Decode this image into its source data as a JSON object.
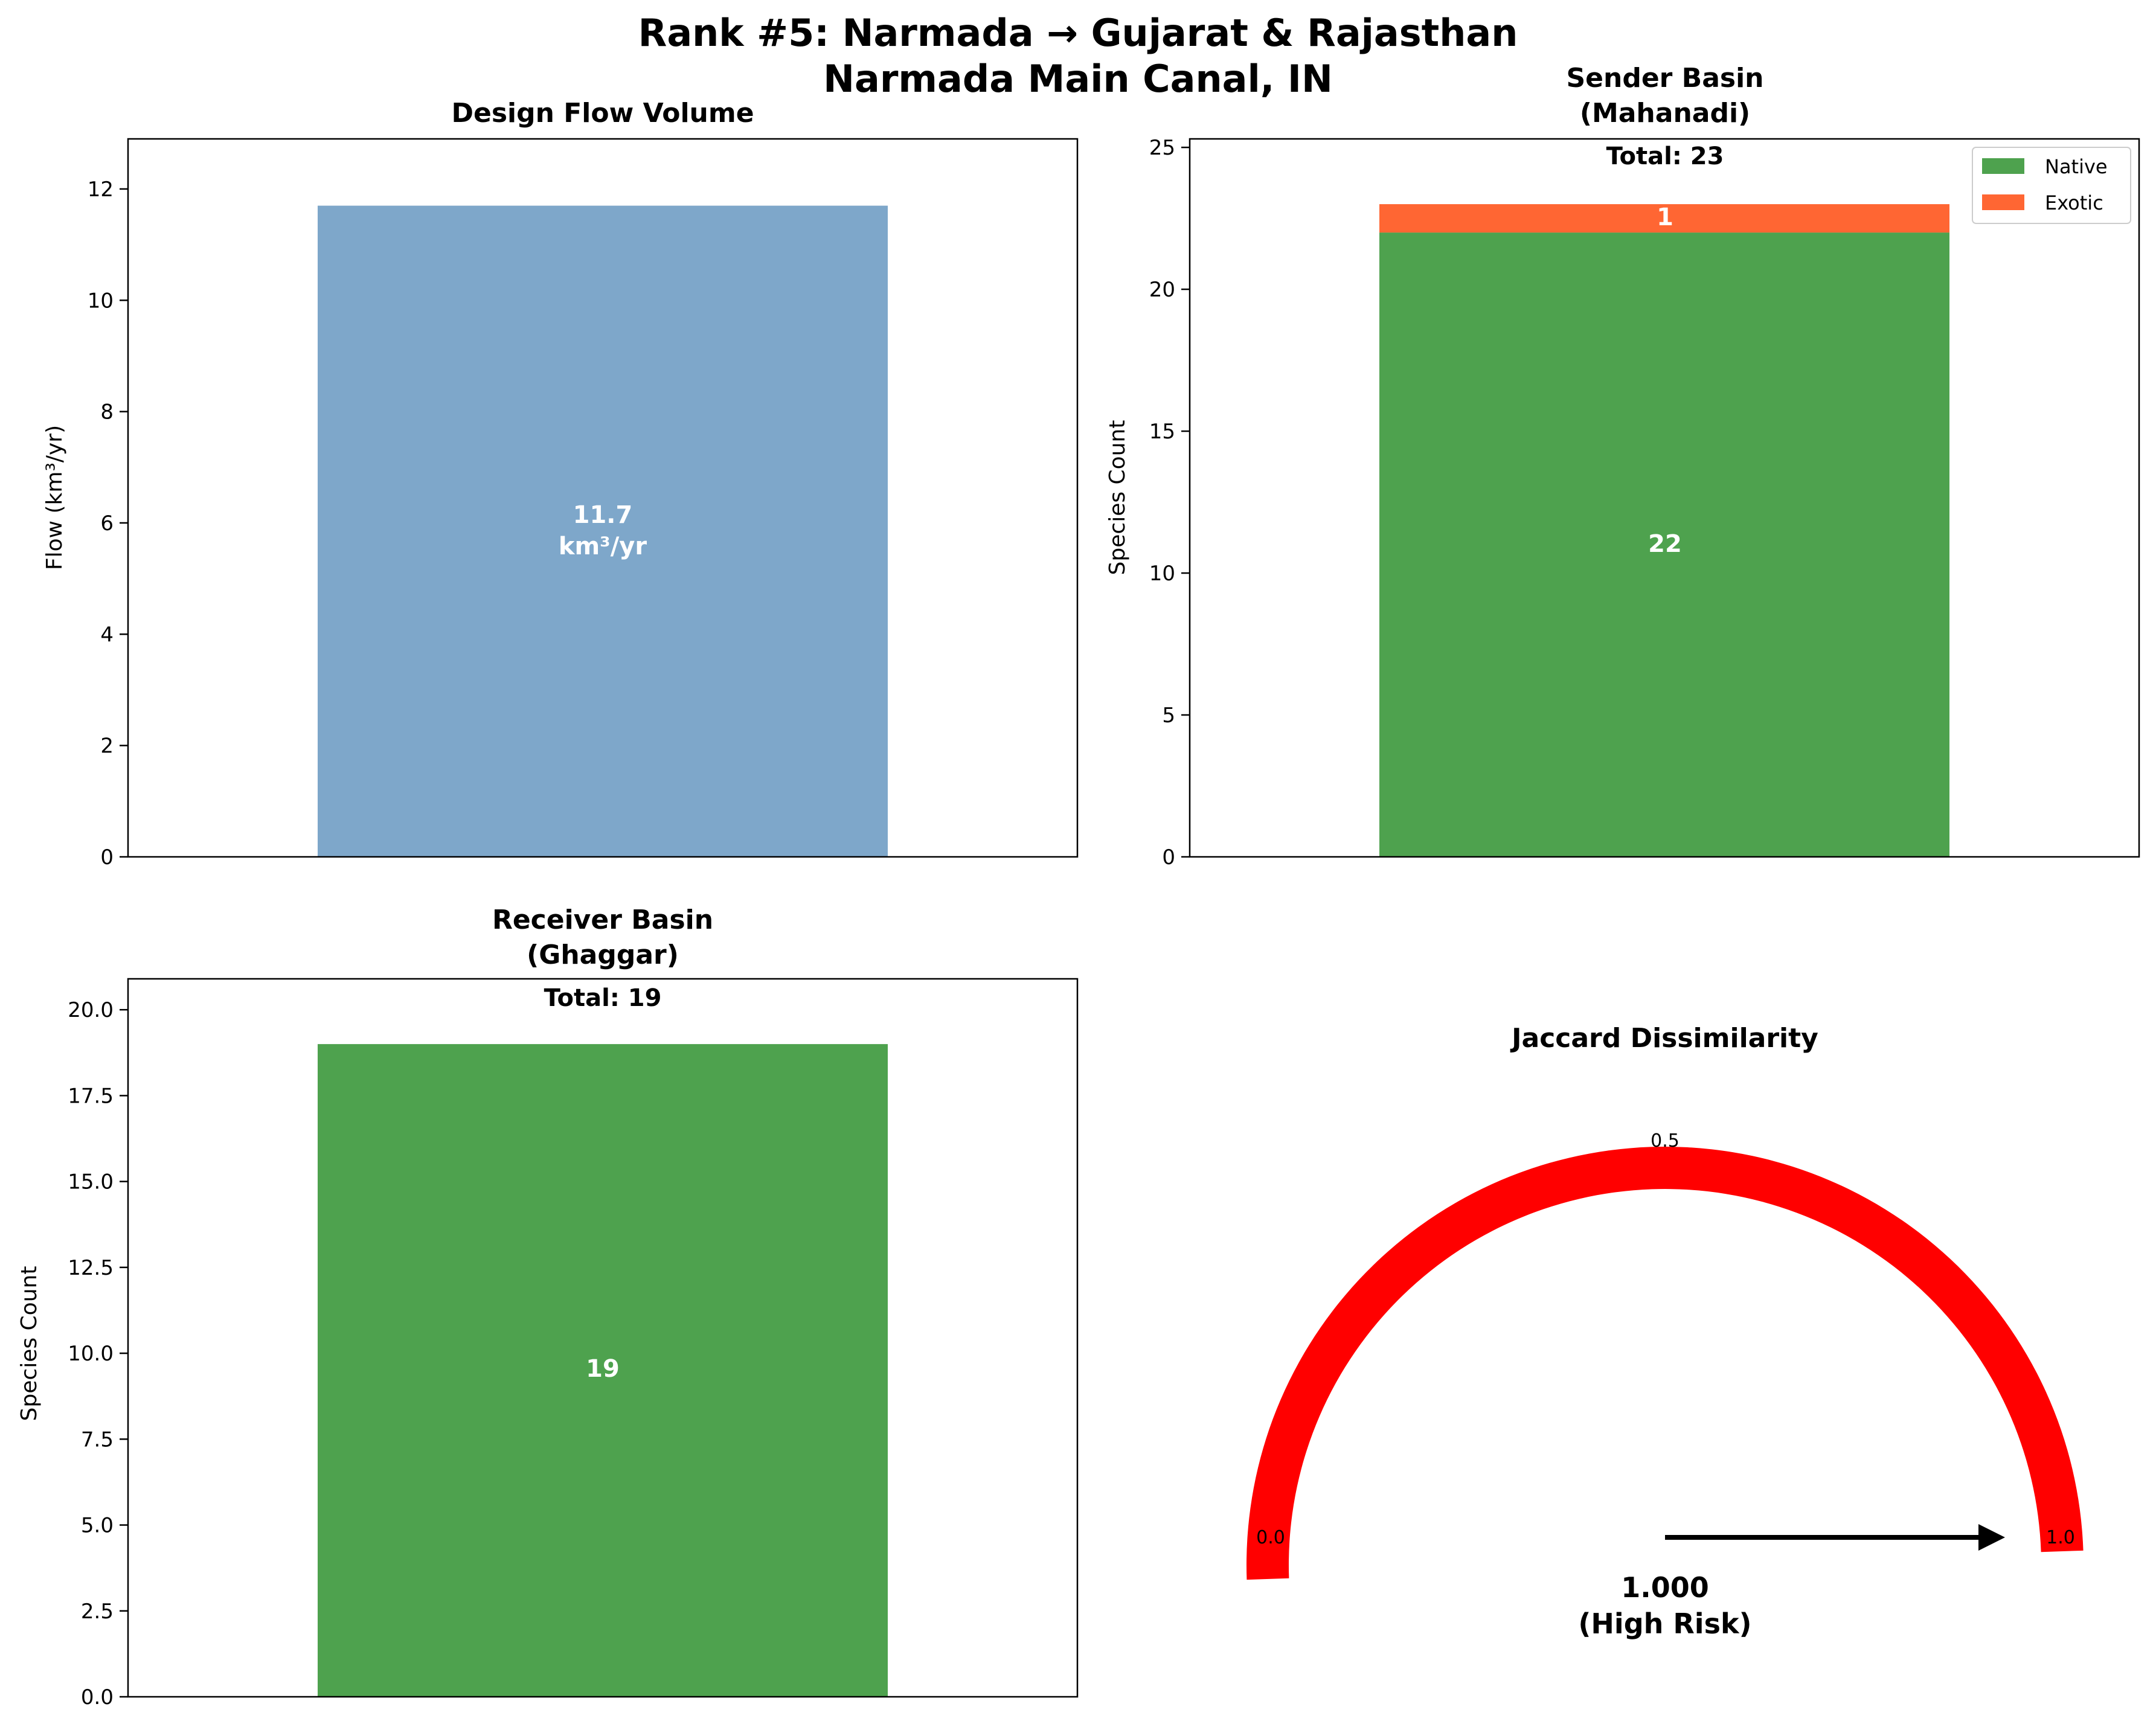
{
  "suptitle": {
    "line1": "Rank #5: Narmada → Gujarat & Rajasthan",
    "line2": "Narmada Main Canal, IN"
  },
  "colors": {
    "flow": "#7ea7ca",
    "native": "#4ea24e",
    "exotic": "#ff6633",
    "gauge": "#ff0000",
    "text_on_bar": "#ffffff"
  },
  "chart_data": [
    {
      "type": "bar",
      "title": "Design Flow Volume",
      "ylabel": "Flow (km³/yr)",
      "ylim": [
        0,
        12.9
      ],
      "yticks": [
        0,
        2,
        4,
        6,
        8,
        10,
        12
      ],
      "yticklabels": [
        "0",
        "2",
        "4",
        "6",
        "8",
        "10",
        "12"
      ],
      "values": [
        11.7
      ],
      "bar_label": {
        "line1": "11.7",
        "line2": "km³/yr"
      },
      "color": "#7ea7ca"
    },
    {
      "type": "bar",
      "title_line1": "Sender Basin",
      "title_line2": "(Mahanadi)",
      "ylabel": "Species Count",
      "ylim": [
        0,
        25.3
      ],
      "yticks": [
        0,
        5,
        10,
        15,
        20,
        25
      ],
      "yticklabels": [
        "0",
        "5",
        "10",
        "15",
        "20",
        "25"
      ],
      "total_label": "Total: 23",
      "series": [
        {
          "name": "Native",
          "values": [
            22
          ],
          "color": "#4ea24e",
          "label": "22"
        },
        {
          "name": "Exotic",
          "values": [
            1
          ],
          "color": "#ff6633",
          "label": "1"
        }
      ],
      "legend": "top-right"
    },
    {
      "type": "bar",
      "title_line1": "Receiver Basin",
      "title_line2": "(Ghaggar)",
      "ylabel": "Species Count",
      "ylim": [
        0,
        20.9
      ],
      "yticks": [
        0,
        2.5,
        5,
        7.5,
        10,
        12.5,
        15,
        17.5,
        20
      ],
      "yticklabels": [
        "0.0",
        "2.5",
        "5.0",
        "7.5",
        "10.0",
        "12.5",
        "15.0",
        "17.5",
        "20.0"
      ],
      "total_label": "Total: 19",
      "values": [
        19
      ],
      "bar_label": "19",
      "color": "#4ea24e"
    },
    {
      "type": "gauge",
      "title": "Jaccard Dissimilarity",
      "range": [
        0,
        1
      ],
      "value": 1.0,
      "value_label": "1.000",
      "risk_label": "(High Risk)",
      "tick_labels": [
        "0.0",
        "0.5",
        "1.0"
      ],
      "color": "#ff0000"
    }
  ]
}
